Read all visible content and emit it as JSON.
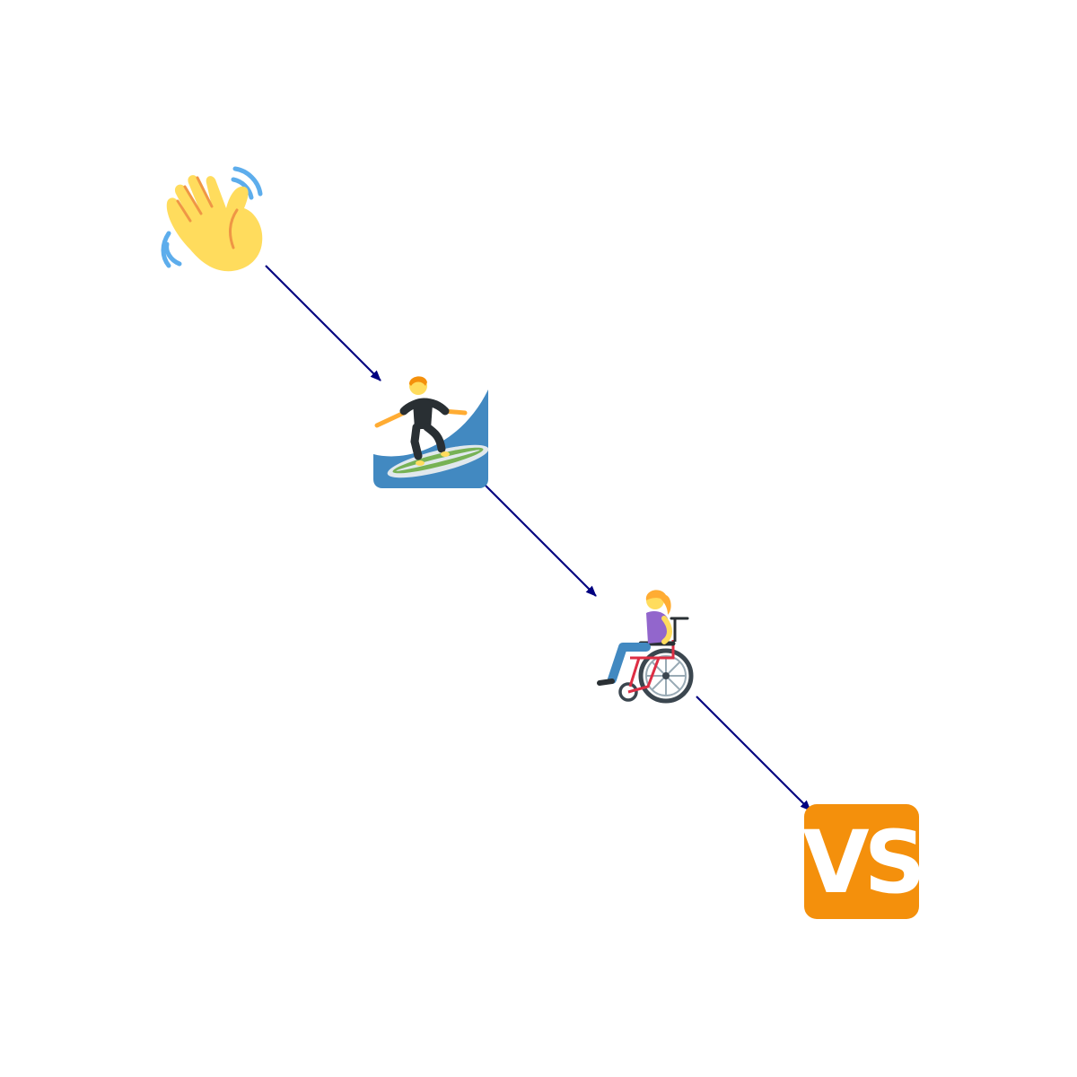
{
  "nodes": [
    {
      "id": "wave",
      "icon": "waving-hand-icon"
    },
    {
      "id": "surf",
      "icon": "person-surfing-icon"
    },
    {
      "id": "wheelchair",
      "icon": "woman-in-manual-wheelchair-icon"
    },
    {
      "id": "vs",
      "icon": "vs-button-icon",
      "label": "VS"
    }
  ],
  "edges": [
    {
      "from": "wave",
      "to": "surf"
    },
    {
      "from": "surf",
      "to": "wheelchair"
    },
    {
      "from": "wheelchair",
      "to": "vs"
    }
  ],
  "colors": {
    "edge": "#000080",
    "vs_background": "#F4900C",
    "vs_text": "#FFFFFF",
    "wave_water": "#4289C1",
    "hand_skin": "#FFDC5D"
  }
}
